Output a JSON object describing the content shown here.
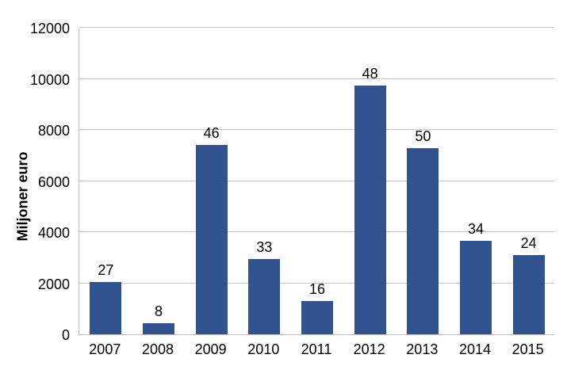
{
  "chart_data": {
    "type": "bar",
    "title": "",
    "xlabel": "",
    "ylabel": "Miljoner euro",
    "categories": [
      "2007",
      "2008",
      "2009",
      "2010",
      "2011",
      "2012",
      "2013",
      "2014",
      "2015"
    ],
    "series": [
      {
        "name": "Miljoner euro",
        "values": [
          2050,
          450,
          7400,
          2950,
          1300,
          9750,
          7300,
          3650,
          3100
        ]
      }
    ],
    "bar_labels": [
      "27",
      "8",
      "46",
      "33",
      "16",
      "48",
      "50",
      "34",
      "24"
    ],
    "ylim": [
      0,
      12000
    ],
    "yticks": [
      0,
      2000,
      4000,
      6000,
      8000,
      10000,
      12000
    ],
    "ytick_labels": [
      "0",
      "2000",
      "4000",
      "6000",
      "8000",
      "10000",
      "12000"
    ],
    "grid": "horizontal",
    "legend": "none",
    "colors": {
      "bar": "#305390",
      "gridline": "#C6C6C6",
      "axis": "#C0C0C0",
      "text": "#000000",
      "background": "#FFFFFF"
    }
  }
}
